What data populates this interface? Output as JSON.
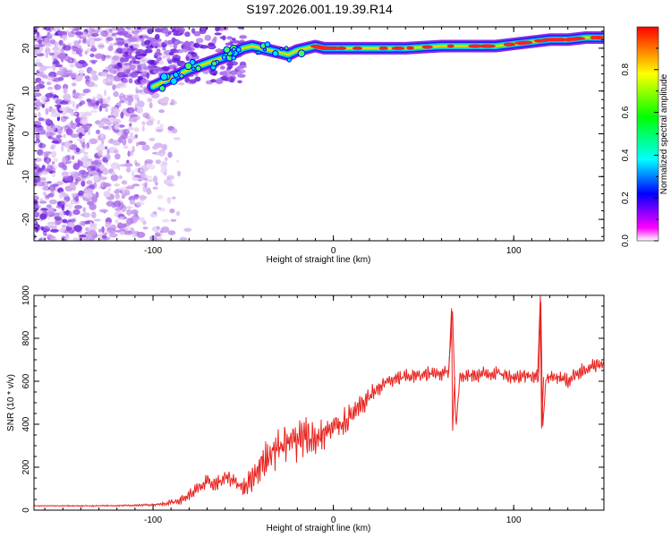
{
  "title": "S197.2026.001.19.39.R14",
  "chart_data": [
    {
      "type": "heatmap",
      "xlabel": "Height of straight line (km)",
      "ylabel": "Frequency (Hz)",
      "xlim": [
        -166,
        150
      ],
      "ylim": [
        -25,
        25
      ],
      "xticks": [
        -100,
        0,
        100
      ],
      "yticks": [
        -20,
        -10,
        0,
        10,
        20
      ],
      "colorbar": {
        "label": "Normalized spectral amplitude",
        "range": [
          0,
          1
        ],
        "ticks": [
          "0.0",
          "0.2",
          "0.4",
          "0.6",
          "0.8"
        ],
        "colors": [
          "#ffffff",
          "#ff00ff",
          "#0000ff",
          "#00ffff",
          "#00ff00",
          "#ffff00",
          "#ff0000"
        ]
      },
      "ridge": {
        "name": "",
        "x": [
          -100,
          -90,
          -80,
          -70,
          -60,
          -50,
          -45,
          -40,
          -35,
          -30,
          -25,
          -20,
          -15,
          -10,
          -5,
          0,
          20,
          40,
          60,
          80,
          90,
          100,
          110,
          120,
          130,
          140,
          150
        ],
        "y": [
          11,
          13,
          15,
          16.5,
          18,
          20,
          20.5,
          20,
          19.5,
          19,
          18.5,
          19.5,
          20,
          20.5,
          20,
          20,
          20,
          20,
          20.5,
          20.5,
          20.5,
          21,
          21.5,
          22,
          22,
          22.5,
          22.5
        ]
      }
    },
    {
      "type": "line",
      "xlabel": "Height of straight line (km)",
      "ylabel": "SNR (10 * v/v)",
      "xlim": [
        -166,
        150
      ],
      "ylim": [
        0,
        1000
      ],
      "xticks": [
        -100,
        0,
        100
      ],
      "yticks": [
        0,
        200,
        400,
        600,
        800,
        1000
      ],
      "series": [
        {
          "name": "",
          "color": "#e8231f",
          "x": [
            -166,
            -150,
            -130,
            -110,
            -95,
            -85,
            -80,
            -75,
            -70,
            -65,
            -60,
            -55,
            -50,
            -45,
            -40,
            -35,
            -30,
            -25,
            -20,
            -15,
            -10,
            -5,
            0,
            5,
            10,
            15,
            20,
            25,
            30,
            40,
            50,
            60,
            64,
            66,
            68,
            70,
            80,
            90,
            100,
            110,
            114,
            115,
            116,
            118,
            125,
            130,
            135,
            140,
            145,
            150
          ],
          "y": [
            20,
            20,
            20,
            22,
            28,
            45,
            70,
            100,
            130,
            120,
            150,
            140,
            100,
            150,
            220,
            260,
            300,
            330,
            320,
            340,
            330,
            360,
            380,
            410,
            440,
            480,
            530,
            570,
            600,
            620,
            630,
            640,
            650,
            940,
            380,
            620,
            630,
            640,
            620,
            630,
            620,
            1000,
            380,
            620,
            620,
            600,
            640,
            650,
            670,
            690
          ],
          "spikiness": [
            3,
            3,
            4,
            4,
            8,
            20,
            30,
            35,
            40,
            40,
            40,
            40,
            50,
            70,
            90,
            110,
            110,
            110,
            110,
            100,
            100,
            90,
            80,
            80,
            70,
            60,
            50,
            40,
            40,
            40,
            40,
            40,
            40,
            0,
            0,
            40,
            40,
            40,
            40,
            40,
            40,
            0,
            0,
            40,
            40,
            40,
            40,
            40,
            40,
            40
          ]
        }
      ]
    }
  ]
}
